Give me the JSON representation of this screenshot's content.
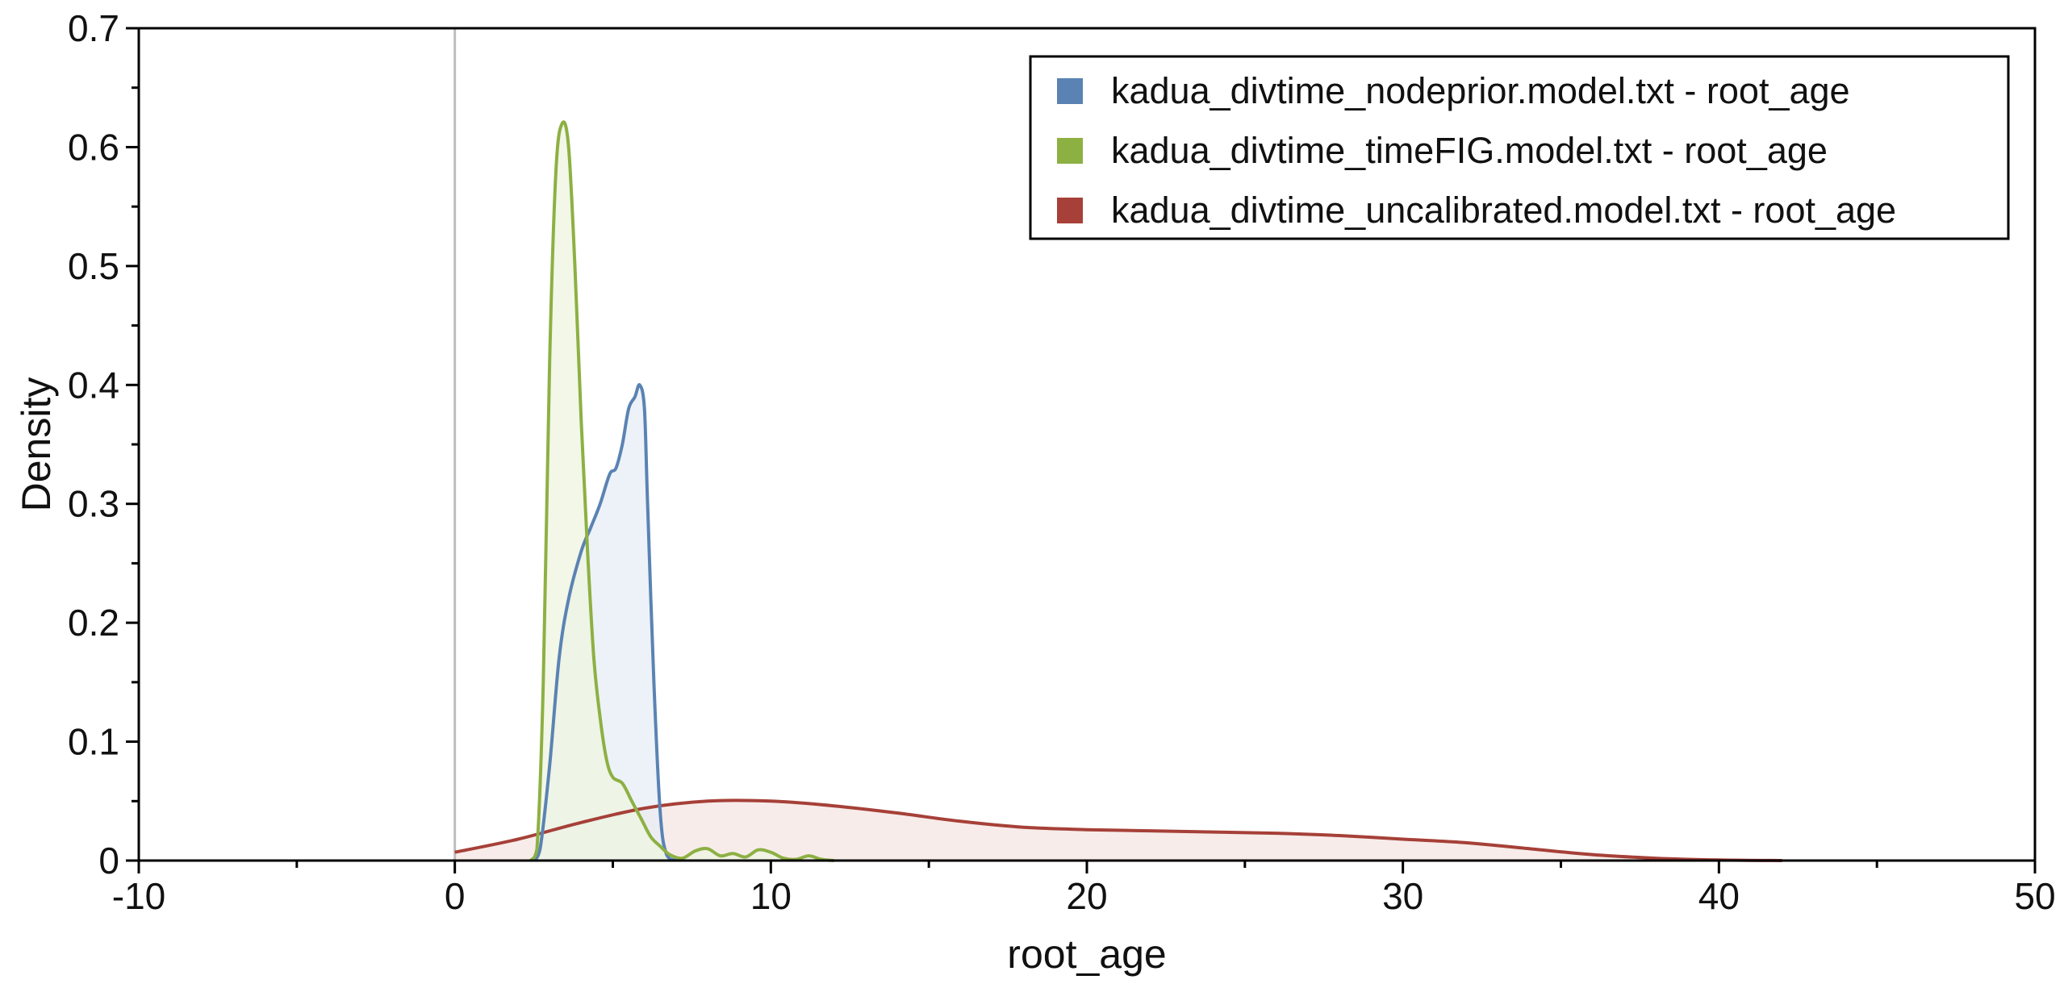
{
  "chart_data": {
    "type": "area",
    "xlabel": "root_age",
    "ylabel": "Density",
    "xlim": [
      -10,
      50
    ],
    "ylim": [
      0,
      0.7
    ],
    "xticks": [
      -10,
      0,
      10,
      20,
      30,
      40,
      50
    ],
    "yticks": [
      0,
      0.1,
      0.2,
      0.3,
      0.4,
      0.5,
      0.6,
      0.7
    ],
    "xtick_labels": [
      "-10",
      "0",
      "10",
      "20",
      "30",
      "40",
      "50"
    ],
    "ytick_labels": [
      "0",
      "0.1",
      "0.2",
      "0.3",
      "0.4",
      "0.5",
      "0.6",
      "0.7"
    ],
    "reference_line_x": 0,
    "legend_position": "top-right",
    "grid": false,
    "series": [
      {
        "name": "kadua_divtime_nodeprior.model.txt - root_age",
        "color": "#5a83b3",
        "fill": "#e7eef6",
        "x": [
          2.5,
          2.7,
          3.0,
          3.3,
          3.6,
          4.0,
          4.3,
          4.6,
          4.9,
          5.1,
          5.3,
          5.5,
          5.7,
          5.85,
          6.0,
          6.1,
          6.3,
          6.5,
          6.7,
          7.0
        ],
        "y": [
          0,
          0.01,
          0.08,
          0.17,
          0.22,
          0.26,
          0.28,
          0.3,
          0.325,
          0.33,
          0.35,
          0.38,
          0.39,
          0.4,
          0.38,
          0.3,
          0.15,
          0.04,
          0.005,
          0
        ]
      },
      {
        "name": "kadua_divtime_timeFIG.model.txt - root_age",
        "color": "#8db043",
        "fill": "#eef4e0",
        "x": [
          2.4,
          2.6,
          2.8,
          3.0,
          3.2,
          3.4,
          3.6,
          3.8,
          4.0,
          4.2,
          4.4,
          4.6,
          4.8,
          5.0,
          5.3,
          5.6,
          5.9,
          6.2,
          6.5,
          6.8,
          7.2,
          7.6,
          8.0,
          8.4,
          8.8,
          9.2,
          9.6,
          10.0,
          10.4,
          10.8,
          11.2,
          11.6,
          12.0
        ],
        "y": [
          0,
          0.01,
          0.15,
          0.42,
          0.58,
          0.62,
          0.6,
          0.5,
          0.37,
          0.26,
          0.17,
          0.12,
          0.085,
          0.07,
          0.065,
          0.05,
          0.035,
          0.02,
          0.012,
          0.005,
          0.002,
          0.008,
          0.01,
          0.004,
          0.006,
          0.003,
          0.009,
          0.007,
          0.002,
          0.001,
          0.004,
          0.001,
          0
        ]
      },
      {
        "name": "kadua_divtime_uncalibrated.model.txt - root_age",
        "color": "#a64038",
        "fill": "#f4e5e3",
        "x": [
          0,
          2,
          4,
          6,
          8,
          10,
          12,
          14,
          16,
          18,
          20,
          22,
          24,
          26,
          28,
          30,
          32,
          34,
          36,
          38,
          40,
          42
        ],
        "y": [
          0.007,
          0.018,
          0.032,
          0.044,
          0.05,
          0.05,
          0.046,
          0.04,
          0.033,
          0.028,
          0.026,
          0.025,
          0.024,
          0.023,
          0.021,
          0.018,
          0.015,
          0.01,
          0.005,
          0.002,
          0.0005,
          0
        ]
      }
    ]
  }
}
